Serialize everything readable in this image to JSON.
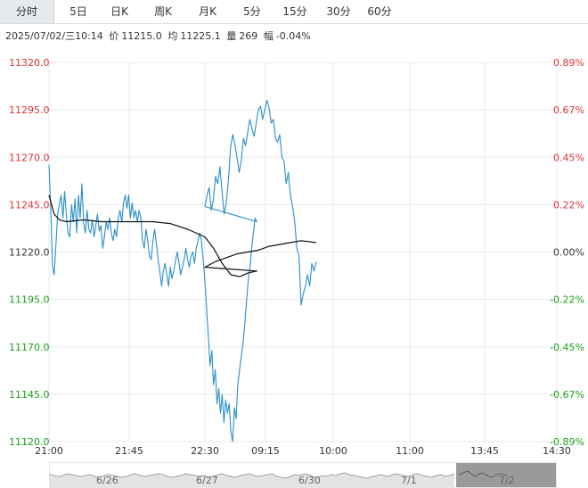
{
  "tabs": [
    {
      "label": "分时",
      "active": true
    },
    {
      "label": "5日",
      "active": false
    },
    {
      "label": "日K",
      "active": false
    },
    {
      "label": "周K",
      "active": false
    },
    {
      "label": "月K",
      "active": false
    },
    {
      "label": "5分",
      "active": false
    },
    {
      "label": "15分",
      "active": false
    },
    {
      "label": "30分",
      "active": false
    },
    {
      "label": "60分",
      "active": false
    }
  ],
  "info": {
    "datetime": "2025/07/02/三10:14",
    "price_label": "价",
    "price": "11215.0",
    "avg_label": "均",
    "avg": "11225.1",
    "vol_label": "量",
    "vol": "269",
    "chg_label": "幅",
    "chg": "-0.04%"
  },
  "chart_data": {
    "type": "line",
    "x_ticks": [
      "21:00",
      "21:45",
      "22:30",
      "09:15",
      "10:00",
      "11:00",
      "13:45",
      "14:30"
    ],
    "y_ticks": [
      "11320.0",
      "11295.0",
      "11270.0",
      "11245.0",
      "11220.0",
      "11195.0",
      "11170.0",
      "11145.0",
      "11120.0"
    ],
    "pct_ticks": [
      "0.89%",
      "0.67%",
      "0.45%",
      "0.22%",
      "0.00%",
      "-0.22%",
      "-0.45%",
      "-0.67%",
      "-0.89%"
    ],
    "ylim": [
      11120,
      11320
    ],
    "prev_close": 11220,
    "sessions": {
      "night": "21:00-23:00",
      "day": "09:00-10:14"
    },
    "colors": {
      "price": "#2a8fcb",
      "avg": "#111111",
      "up": "#e03030",
      "down": "#19a019",
      "zero": "#333333",
      "grid": "#e8e8e8"
    },
    "series": [
      {
        "values": [
          {
            "t": "21:00",
            "v": 11266
          },
          {
            "t": "21:01",
            "v": 11244
          },
          {
            "t": "21:02",
            "v": 11213
          },
          {
            "t": "21:03",
            "v": 11208
          },
          {
            "t": "21:04",
            "v": 11224
          },
          {
            "t": "21:05",
            "v": 11240
          },
          {
            "t": "21:06",
            "v": 11245
          },
          {
            "t": "21:07",
            "v": 11250
          },
          {
            "t": "21:08",
            "v": 11238
          },
          {
            "t": "21:09",
            "v": 11252
          },
          {
            "t": "21:10",
            "v": 11240
          },
          {
            "t": "21:11",
            "v": 11230
          },
          {
            "t": "21:12",
            "v": 11228
          },
          {
            "t": "21:13",
            "v": 11245
          },
          {
            "t": "21:14",
            "v": 11236
          },
          {
            "t": "21:15",
            "v": 11248
          },
          {
            "t": "21:16",
            "v": 11230
          },
          {
            "t": "21:17",
            "v": 11250
          },
          {
            "t": "21:18",
            "v": 11238
          },
          {
            "t": "21:19",
            "v": 11256
          },
          {
            "t": "21:20",
            "v": 11235
          },
          {
            "t": "21:21",
            "v": 11230
          },
          {
            "t": "21:22",
            "v": 11242
          },
          {
            "t": "21:23",
            "v": 11232
          },
          {
            "t": "21:24",
            "v": 11230
          },
          {
            "t": "21:25",
            "v": 11237
          },
          {
            "t": "21:26",
            "v": 11228
          },
          {
            "t": "21:27",
            "v": 11234
          },
          {
            "t": "21:28",
            "v": 11240
          },
          {
            "t": "21:29",
            "v": 11231
          },
          {
            "t": "21:30",
            "v": 11234
          },
          {
            "t": "21:31",
            "v": 11222
          },
          {
            "t": "21:32",
            "v": 11228
          },
          {
            "t": "21:33",
            "v": 11236
          },
          {
            "t": "21:34",
            "v": 11232
          },
          {
            "t": "21:35",
            "v": 11238
          },
          {
            "t": "21:36",
            "v": 11230
          },
          {
            "t": "21:37",
            "v": 11226
          },
          {
            "t": "21:38",
            "v": 11232
          },
          {
            "t": "21:39",
            "v": 11228
          },
          {
            "t": "21:40",
            "v": 11238
          },
          {
            "t": "21:41",
            "v": 11242
          },
          {
            "t": "21:42",
            "v": 11236
          },
          {
            "t": "21:43",
            "v": 11246
          },
          {
            "t": "21:44",
            "v": 11250
          },
          {
            "t": "21:45",
            "v": 11243
          },
          {
            "t": "21:46",
            "v": 11250
          },
          {
            "t": "21:47",
            "v": 11238
          },
          {
            "t": "21:48",
            "v": 11246
          },
          {
            "t": "21:49",
            "v": 11238
          },
          {
            "t": "21:50",
            "v": 11242
          },
          {
            "t": "21:51",
            "v": 11236
          },
          {
            "t": "21:52",
            "v": 11242
          },
          {
            "t": "21:53",
            "v": 11238
          },
          {
            "t": "21:54",
            "v": 11226
          },
          {
            "t": "21:55",
            "v": 11222
          },
          {
            "t": "21:56",
            "v": 11232
          },
          {
            "t": "21:57",
            "v": 11226
          },
          {
            "t": "21:58",
            "v": 11218
          },
          {
            "t": "21:59",
            "v": 11216
          },
          {
            "t": "22:00",
            "v": 11226
          },
          {
            "t": "22:01",
            "v": 11232
          },
          {
            "t": "22:02",
            "v": 11224
          },
          {
            "t": "22:03",
            "v": 11216
          },
          {
            "t": "22:04",
            "v": 11210
          },
          {
            "t": "22:05",
            "v": 11202
          },
          {
            "t": "22:06",
            "v": 11210
          },
          {
            "t": "22:07",
            "v": 11214
          },
          {
            "t": "22:08",
            "v": 11208
          },
          {
            "t": "22:09",
            "v": 11202
          },
          {
            "t": "22:10",
            "v": 11212
          },
          {
            "t": "22:11",
            "v": 11206
          },
          {
            "t": "22:12",
            "v": 11210
          },
          {
            "t": "22:13",
            "v": 11215
          },
          {
            "t": "22:14",
            "v": 11220
          },
          {
            "t": "22:15",
            "v": 11215
          },
          {
            "t": "22:16",
            "v": 11208
          },
          {
            "t": "22:17",
            "v": 11212
          },
          {
            "t": "22:18",
            "v": 11216
          },
          {
            "t": "22:19",
            "v": 11222
          },
          {
            "t": "22:20",
            "v": 11216
          },
          {
            "t": "22:21",
            "v": 11212
          },
          {
            "t": "22:22",
            "v": 11218
          },
          {
            "t": "22:23",
            "v": 11220
          },
          {
            "t": "22:24",
            "v": 11214
          },
          {
            "t": "22:25",
            "v": 11222
          },
          {
            "t": "22:26",
            "v": 11226
          },
          {
            "t": "22:27",
            "v": 11230
          },
          {
            "t": "22:28",
            "v": 11226
          },
          {
            "t": "22:29",
            "v": 11216
          },
          {
            "t": "22:30",
            "v": 11205
          },
          {
            "t": "22:31",
            "v": 11190
          },
          {
            "t": "22:32",
            "v": 11175
          },
          {
            "t": "22:33",
            "v": 11160
          },
          {
            "t": "22:34",
            "v": 11168
          },
          {
            "t": "22:35",
            "v": 11150
          },
          {
            "t": "22:36",
            "v": 11158
          },
          {
            "t": "22:37",
            "v": 11140
          },
          {
            "t": "22:38",
            "v": 11148
          },
          {
            "t": "22:39",
            "v": 11135
          },
          {
            "t": "22:40",
            "v": 11145
          },
          {
            "t": "22:41",
            "v": 11130
          },
          {
            "t": "22:42",
            "v": 11142
          },
          {
            "t": "22:43",
            "v": 11135
          },
          {
            "t": "22:44",
            "v": 11140
          },
          {
            "t": "22:45",
            "v": 11125
          },
          {
            "t": "22:46",
            "v": 11120
          },
          {
            "t": "22:47",
            "v": 11138
          },
          {
            "t": "22:48",
            "v": 11132
          },
          {
            "t": "22:49",
            "v": 11150
          },
          {
            "t": "22:50",
            "v": 11158
          },
          {
            "t": "22:51",
            "v": 11165
          },
          {
            "t": "22:52",
            "v": 11172
          },
          {
            "t": "22:53",
            "v": 11182
          },
          {
            "t": "22:54",
            "v": 11194
          },
          {
            "t": "22:55",
            "v": 11205
          },
          {
            "t": "22:56",
            "v": 11212
          },
          {
            "t": "22:57",
            "v": 11222
          },
          {
            "t": "22:58",
            "v": 11230
          },
          {
            "t": "22:59",
            "v": 11238
          },
          {
            "t": "23:00",
            "v": 11236
          },
          {
            "t": "09:00",
            "v": 11244
          },
          {
            "t": "09:01",
            "v": 11250
          },
          {
            "t": "09:02",
            "v": 11254
          },
          {
            "t": "09:03",
            "v": 11242
          },
          {
            "t": "09:04",
            "v": 11248
          },
          {
            "t": "09:05",
            "v": 11260
          },
          {
            "t": "09:06",
            "v": 11256
          },
          {
            "t": "09:07",
            "v": 11265
          },
          {
            "t": "09:08",
            "v": 11252
          },
          {
            "t": "09:09",
            "v": 11240
          },
          {
            "t": "09:10",
            "v": 11246
          },
          {
            "t": "09:11",
            "v": 11258
          },
          {
            "t": "09:12",
            "v": 11275
          },
          {
            "t": "09:13",
            "v": 11282
          },
          {
            "t": "09:14",
            "v": 11277
          },
          {
            "t": "09:15",
            "v": 11270
          },
          {
            "t": "09:16",
            "v": 11262
          },
          {
            "t": "09:17",
            "v": 11268
          },
          {
            "t": "09:18",
            "v": 11280
          },
          {
            "t": "09:19",
            "v": 11276
          },
          {
            "t": "09:20",
            "v": 11283
          },
          {
            "t": "09:21",
            "v": 11290
          },
          {
            "t": "09:22",
            "v": 11285
          },
          {
            "t": "09:23",
            "v": 11281
          },
          {
            "t": "09:24",
            "v": 11288
          },
          {
            "t": "09:25",
            "v": 11295
          },
          {
            "t": "09:26",
            "v": 11297
          },
          {
            "t": "09:27",
            "v": 11290
          },
          {
            "t": "09:28",
            "v": 11295
          },
          {
            "t": "09:29",
            "v": 11300
          },
          {
            "t": "09:30",
            "v": 11296
          },
          {
            "t": "09:31",
            "v": 11288
          },
          {
            "t": "09:32",
            "v": 11290
          },
          {
            "t": "09:33",
            "v": 11280
          },
          {
            "t": "09:34",
            "v": 11278
          },
          {
            "t": "09:35",
            "v": 11282
          },
          {
            "t": "09:36",
            "v": 11270
          },
          {
            "t": "09:37",
            "v": 11268
          },
          {
            "t": "09:38",
            "v": 11256
          },
          {
            "t": "09:39",
            "v": 11262
          },
          {
            "t": "09:40",
            "v": 11250
          },
          {
            "t": "09:41",
            "v": 11244
          },
          {
            "t": "09:42",
            "v": 11236
          },
          {
            "t": "09:43",
            "v": 11222
          },
          {
            "t": "09:44",
            "v": 11218
          },
          {
            "t": "09:45",
            "v": 11192
          },
          {
            "t": "09:46",
            "v": 11198
          },
          {
            "t": "09:47",
            "v": 11202
          },
          {
            "t": "09:48",
            "v": 11208
          },
          {
            "t": "09:49",
            "v": 11202
          },
          {
            "t": "09:50",
            "v": 11214
          },
          {
            "t": "09:51",
            "v": 11210
          },
          {
            "t": "09:52",
            "v": 11215
          }
        ]
      },
      {
        "values": [
          {
            "t": "21:00",
            "v": 11250
          },
          {
            "t": "21:03",
            "v": 11240
          },
          {
            "t": "21:06",
            "v": 11237
          },
          {
            "t": "21:10",
            "v": 11236
          },
          {
            "t": "21:20",
            "v": 11237
          },
          {
            "t": "21:30",
            "v": 11236
          },
          {
            "t": "21:40",
            "v": 11236
          },
          {
            "t": "21:50",
            "v": 11236
          },
          {
            "t": "22:00",
            "v": 11236
          },
          {
            "t": "22:10",
            "v": 11235
          },
          {
            "t": "22:20",
            "v": 11232
          },
          {
            "t": "22:30",
            "v": 11228
          },
          {
            "t": "22:35",
            "v": 11222
          },
          {
            "t": "22:40",
            "v": 11214
          },
          {
            "t": "22:45",
            "v": 11208
          },
          {
            "t": "22:50",
            "v": 11207
          },
          {
            "t": "22:55",
            "v": 11209
          },
          {
            "t": "23:00",
            "v": 11210
          },
          {
            "t": "09:00",
            "v": 11212
          },
          {
            "t": "09:05",
            "v": 11215
          },
          {
            "t": "09:10",
            "v": 11217
          },
          {
            "t": "09:15",
            "v": 11219
          },
          {
            "t": "09:20",
            "v": 11220
          },
          {
            "t": "09:25",
            "v": 11221
          },
          {
            "t": "09:30",
            "v": 11223
          },
          {
            "t": "09:35",
            "v": 11224
          },
          {
            "t": "09:40",
            "v": 11225
          },
          {
            "t": "09:45",
            "v": 11226
          },
          {
            "t": "09:52",
            "v": 11225
          }
        ]
      }
    ]
  },
  "navigator": {
    "dates": [
      "6/26",
      "6/27",
      "6/30",
      "7/1",
      "7/2"
    ],
    "colors": {
      "line": "#888888",
      "fill": "#e4e4e4",
      "selected": "#888888"
    }
  }
}
